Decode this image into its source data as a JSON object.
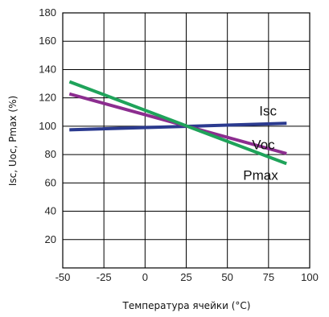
{
  "chart_data": {
    "type": "line",
    "xlabel": "Температура ячейки (°C)",
    "ylabel": "Isc, Uoc, Pmax (%)",
    "xlim": [
      -50,
      100
    ],
    "ylim": [
      0,
      180
    ],
    "xticks": [
      -50,
      -25,
      0,
      25,
      50,
      75,
      100
    ],
    "yticks": [
      20,
      40,
      60,
      80,
      100,
      120,
      140,
      160,
      180
    ],
    "x_tick_labels": [
      "-50",
      "-25",
      "0",
      "25",
      "50",
      "75",
      "100"
    ],
    "y_tick_labels": [
      "20",
      "40",
      "60",
      "80",
      "100",
      "120",
      "140",
      "160",
      "180"
    ],
    "grid": true,
    "legend": "inline labels at line ends",
    "series": [
      {
        "name": "Isc",
        "color": "#2b3a8f",
        "points": [
          [
            -45,
            97.5
          ],
          [
            85,
            102
          ]
        ]
      },
      {
        "name": "Voc",
        "color": "#8c2d8f",
        "points": [
          [
            -45,
            122.5
          ],
          [
            85,
            81
          ]
        ]
      },
      {
        "name": "Pmax",
        "color": "#1fa35a",
        "points": [
          [
            -45,
            131
          ],
          [
            85,
            74
          ]
        ]
      }
    ]
  }
}
